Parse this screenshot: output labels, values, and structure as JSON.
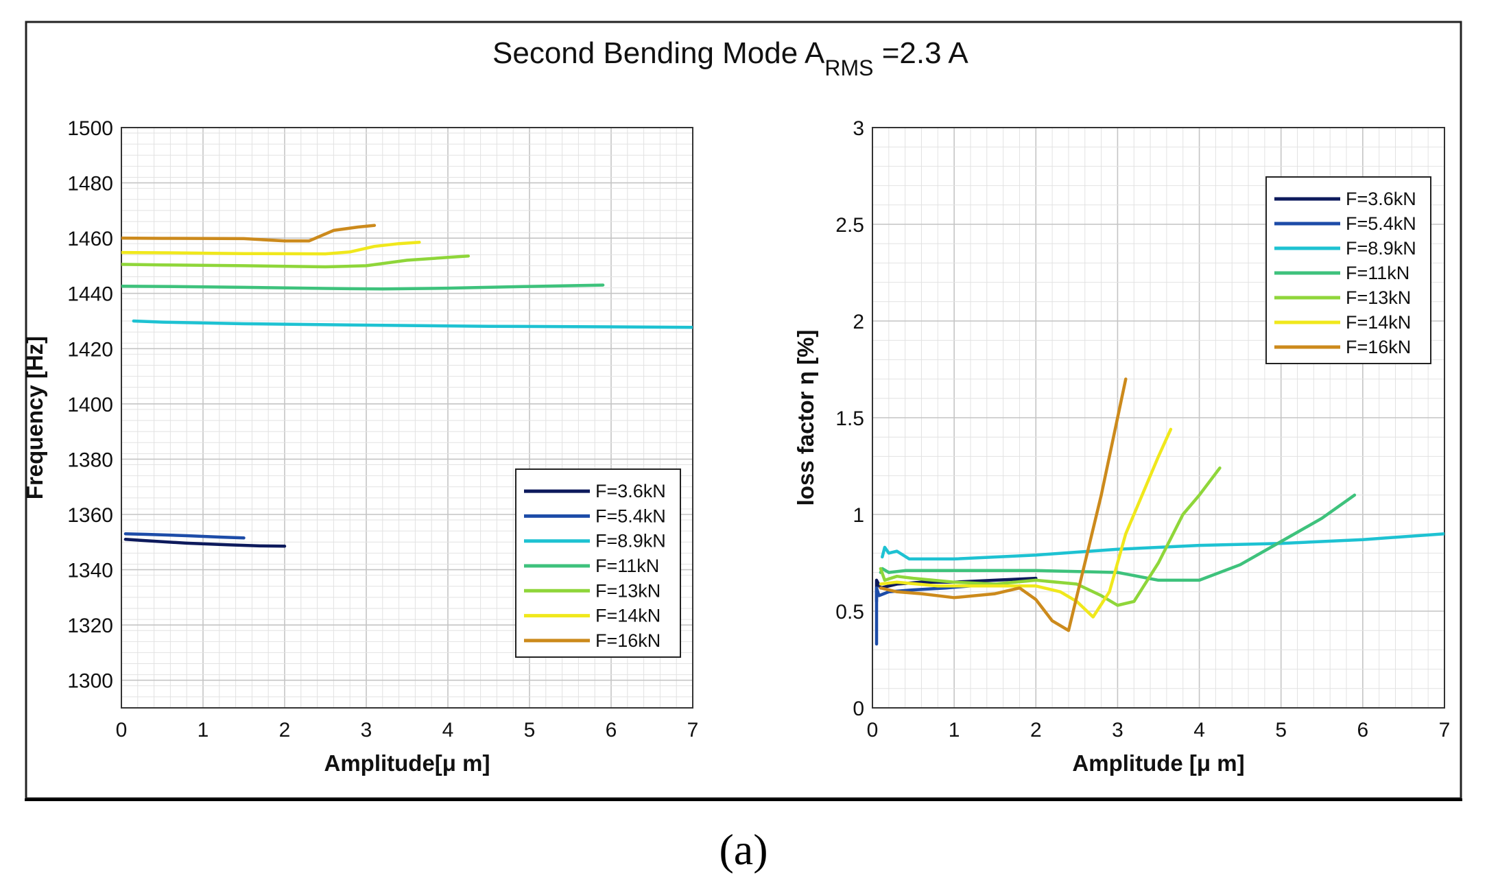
{
  "figure": {
    "title_main": "Second Bending Mode  A",
    "title_sub": "RMS",
    "title_tail": " =2.3 A",
    "caption": "(a)"
  },
  "colors": {
    "F=3.6kN": "#0d1a5c",
    "F=5.4kN": "#1d4ca8",
    "F=8.9kN": "#1ec2d2",
    "F=11kN": "#3ec27c",
    "F=13kN": "#8fd63a",
    "F=14kN": "#f0e81c",
    "F=16kN": "#cc8a1c"
  },
  "chart_data": [
    {
      "type": "line",
      "xlabel": "Amplitude[μ m]",
      "ylabel": "Frequency [Hz]",
      "xlim": [
        0,
        7
      ],
      "ylim": [
        1290,
        1500
      ],
      "xticks": [
        "0",
        "1",
        "2",
        "3",
        "4",
        "5",
        "6",
        "7"
      ],
      "yticks": [
        "1300",
        "1320",
        "1340",
        "1360",
        "1380",
        "1400",
        "1420",
        "1440",
        "1460",
        "1480",
        "1500"
      ],
      "grid": true,
      "legend_position": "bottom-right",
      "series": [
        {
          "name": "F=3.6kN",
          "x": [
            0.05,
            0.3,
            0.8,
            1.3,
            1.7,
            2.0
          ],
          "y": [
            1351,
            1350.5,
            1349.6,
            1349,
            1348.6,
            1348.5
          ]
        },
        {
          "name": "F=5.4kN",
          "x": [
            0.05,
            0.3,
            0.8,
            1.2,
            1.5
          ],
          "y": [
            1353,
            1352.8,
            1352.3,
            1351.8,
            1351.5
          ]
        },
        {
          "name": "F=8.9kN",
          "x": [
            0.15,
            0.5,
            1.5,
            3,
            4.5,
            6,
            7
          ],
          "y": [
            1430,
            1429.6,
            1429,
            1428.5,
            1428.1,
            1427.9,
            1427.7
          ]
        },
        {
          "name": "F=11kN",
          "x": [
            0,
            0.5,
            1.5,
            2.5,
            3.2,
            4,
            5,
            5.9
          ],
          "y": [
            1442.6,
            1442.5,
            1442.2,
            1441.8,
            1441.6,
            1441.9,
            1442.5,
            1443
          ]
        },
        {
          "name": "F=13kN",
          "x": [
            0,
            0.5,
            1.5,
            2.5,
            3.0,
            3.5,
            4.0,
            4.25
          ],
          "y": [
            1450.5,
            1450.3,
            1450,
            1449.6,
            1450,
            1452,
            1453,
            1453.5
          ]
        },
        {
          "name": "F=14kN",
          "x": [
            0,
            0.5,
            1.5,
            2.5,
            2.8,
            3.1,
            3.4,
            3.65
          ],
          "y": [
            1454.8,
            1454.7,
            1454.4,
            1454.3,
            1455,
            1457,
            1458,
            1458.5
          ]
        },
        {
          "name": "F=16kN",
          "x": [
            0,
            0.5,
            1.5,
            2.0,
            2.3,
            2.6,
            2.9,
            3.1
          ],
          "y": [
            1460,
            1459.9,
            1459.8,
            1459,
            1459,
            1462.8,
            1464,
            1464.6
          ]
        }
      ]
    },
    {
      "type": "line",
      "xlabel": "Amplitude [μ m]",
      "ylabel": "loss factor η [%]",
      "xlim": [
        0,
        7
      ],
      "ylim": [
        0,
        3
      ],
      "xticks": [
        "0",
        "1",
        "2",
        "3",
        "4",
        "5",
        "6",
        "7"
      ],
      "yticks": [
        "0",
        "0.5",
        "1",
        "1.5",
        "2",
        "2.5",
        "3"
      ],
      "grid": true,
      "legend_position": "top-right",
      "series": [
        {
          "name": "F=3.6kN",
          "x": [
            0.05,
            0.05,
            0.1,
            0.3,
            0.6,
            1.0,
            1.5,
            2.0
          ],
          "y": [
            0.55,
            0.66,
            0.62,
            0.64,
            0.65,
            0.65,
            0.66,
            0.67
          ]
        },
        {
          "name": "F=5.4kN",
          "x": [
            0.05,
            0.05,
            0.08,
            0.2,
            0.5,
            0.9,
            1.2,
            1.5
          ],
          "y": [
            0.33,
            0.62,
            0.58,
            0.6,
            0.61,
            0.62,
            0.63,
            0.64
          ]
        },
        {
          "name": "F=8.9kN",
          "x": [
            0.12,
            0.15,
            0.2,
            0.3,
            0.45,
            0.6,
            1.0,
            2.0,
            3.0,
            4.0,
            5.0,
            6.0,
            7.0
          ],
          "y": [
            0.78,
            0.83,
            0.8,
            0.81,
            0.77,
            0.77,
            0.77,
            0.79,
            0.82,
            0.84,
            0.85,
            0.87,
            0.9
          ]
        },
        {
          "name": "F=11kN",
          "x": [
            0.1,
            0.12,
            0.2,
            0.4,
            1.0,
            2.0,
            3.0,
            3.5,
            4.0,
            4.5,
            5.0,
            5.5,
            5.9
          ],
          "y": [
            0.7,
            0.72,
            0.7,
            0.71,
            0.71,
            0.71,
            0.7,
            0.66,
            0.66,
            0.74,
            0.86,
            0.98,
            1.1
          ]
        },
        {
          "name": "F=13kN",
          "x": [
            0.1,
            0.15,
            0.3,
            0.5,
            1.0,
            1.5,
            2.0,
            2.5,
            2.8,
            3.0,
            3.2,
            3.5,
            3.8,
            4.0,
            4.25
          ],
          "y": [
            0.72,
            0.66,
            0.68,
            0.67,
            0.65,
            0.64,
            0.66,
            0.64,
            0.58,
            0.53,
            0.55,
            0.75,
            1.0,
            1.1,
            1.24
          ]
        },
        {
          "name": "F=14kN",
          "x": [
            0.1,
            0.3,
            0.8,
            1.5,
            2.0,
            2.3,
            2.5,
            2.7,
            2.9,
            3.1,
            3.3,
            3.5,
            3.65
          ],
          "y": [
            0.64,
            0.65,
            0.63,
            0.63,
            0.63,
            0.6,
            0.55,
            0.47,
            0.6,
            0.9,
            1.1,
            1.3,
            1.44
          ]
        },
        {
          "name": "F=16kN",
          "x": [
            0.1,
            0.3,
            0.6,
            1.0,
            1.5,
            1.8,
            2.0,
            2.2,
            2.4,
            2.6,
            2.8,
            3.0,
            3.1
          ],
          "y": [
            0.62,
            0.6,
            0.59,
            0.57,
            0.59,
            0.62,
            0.56,
            0.45,
            0.4,
            0.75,
            1.1,
            1.5,
            1.7
          ]
        }
      ]
    }
  ]
}
